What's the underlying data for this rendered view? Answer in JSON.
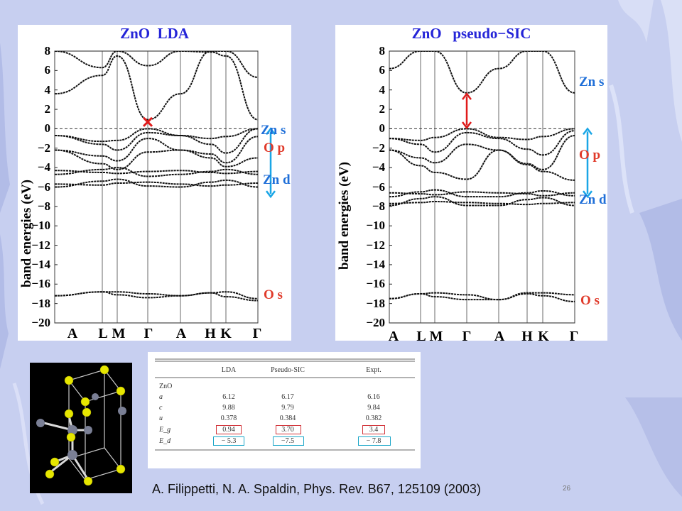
{
  "slide": {
    "reference": "A. Filippetti, N. A. Spaldin, Phys. Rev. B67, 125109 (2003)",
    "page_number": "26"
  },
  "colors": {
    "title": "#2525d8",
    "orbital_label": "#e03a2a",
    "zn_label": "#1f6fd8",
    "arrow_blue": "#1aa6e6",
    "arrow_red": "#e01b1b",
    "band_line": "#111111",
    "background": "#c7cff0"
  },
  "panels": [
    {
      "title": "ZnO  LDA",
      "ylabel": "band energies (eV)",
      "kpoints": [
        "A",
        "L",
        "M",
        "Γ",
        "A",
        "H",
        "K",
        "Γ"
      ],
      "annotations": {
        "zn_s": "Zn s",
        "o_p": "O p",
        "zn_d": "Zn d",
        "o_s": "O s"
      },
      "gap_marker": "cross-icon"
    },
    {
      "title": "ZnO   pseudo−SIC",
      "ylabel": "band energies (eV)",
      "kpoints": [
        "A",
        "L",
        "M",
        "Γ",
        "A",
        "H",
        "K",
        "Γ"
      ],
      "annotations": {
        "zn_s": "Zn s",
        "o_p": "O p",
        "zn_d": "Zn d",
        "o_s": "O s"
      },
      "gap_marker": "double-arrow-icon"
    }
  ],
  "table": {
    "columns": [
      "",
      "LDA",
      "Pseudo-SIC",
      "Expt."
    ],
    "section": "ZnO",
    "rows": [
      {
        "label": "a",
        "lda": "6.12",
        "sic": "6.17",
        "expt": "6.16"
      },
      {
        "label": "c",
        "lda": "9.88",
        "sic": "9.79",
        "expt": "9.84"
      },
      {
        "label": "u",
        "lda": "0.378",
        "sic": "0.384",
        "expt": "0.382"
      },
      {
        "label": "E_g",
        "lda": "0.94",
        "sic": "3.70",
        "expt": "3.4"
      },
      {
        "label": "E_d",
        "lda": "− 5.3",
        "sic": "−7.5",
        "expt": "− 7.8"
      }
    ]
  },
  "chart_data": [
    {
      "type": "line",
      "title": "ZnO  LDA",
      "xlabel": "",
      "ylabel": "band energies (eV)",
      "ylim": [
        -20,
        8
      ],
      "yticks": [
        8,
        6,
        4,
        2,
        0,
        -2,
        -4,
        -6,
        -8,
        -10,
        -12,
        -14,
        -16,
        -18,
        -20
      ],
      "x": [
        "A",
        "L",
        "M",
        "Γ",
        "A",
        "H",
        "K",
        "Γ"
      ],
      "fermi_level": 0,
      "series": [
        {
          "values": [
            3.6,
            5.5,
            7.5,
            0.94,
            3.6,
            8.0,
            8.0,
            5.3
          ]
        },
        {
          "values": [
            8.0,
            6.3,
            8.0,
            6.5,
            8.0,
            7.9,
            7.5,
            0.94
          ]
        },
        {
          "values": [
            -0.7,
            -1.3,
            -1.2,
            0.0,
            -0.7,
            -1.0,
            -0.8,
            0.0
          ]
        },
        {
          "values": [
            -0.7,
            -1.6,
            -2.2,
            -0.4,
            -0.7,
            -1.6,
            -2.5,
            0.0
          ]
        },
        {
          "values": [
            -2.2,
            -2.8,
            -3.3,
            -1.0,
            -2.2,
            -2.6,
            -3.5,
            -0.8
          ]
        },
        {
          "values": [
            -2.2,
            -3.6,
            -4.2,
            -2.4,
            -2.2,
            -3.0,
            -3.9,
            -3.0
          ]
        },
        {
          "values": [
            -4.3,
            -4.5,
            -4.6,
            -4.4,
            -4.3,
            -4.5,
            -4.6,
            -4.4
          ]
        },
        {
          "values": [
            -4.7,
            -4.2,
            -4.0,
            -4.9,
            -4.7,
            -4.4,
            -4.2,
            -4.7
          ]
        },
        {
          "values": [
            -5.7,
            -5.8,
            -5.6,
            -5.5,
            -5.7,
            -5.9,
            -5.8,
            -5.6
          ]
        },
        {
          "values": [
            -6.0,
            -5.4,
            -5.2,
            -5.9,
            -6.0,
            -5.5,
            -5.3,
            -6.0
          ]
        },
        {
          "values": [
            -17.2,
            -16.8,
            -16.8,
            -17.0,
            -17.2,
            -16.9,
            -16.8,
            -17.5
          ]
        },
        {
          "values": [
            -17.2,
            -16.8,
            -17.1,
            -17.4,
            -17.2,
            -16.9,
            -17.3,
            -17.7
          ]
        }
      ]
    },
    {
      "type": "line",
      "title": "ZnO   pseudo−SIC",
      "xlabel": "",
      "ylabel": "band energies (eV)",
      "ylim": [
        -20,
        8
      ],
      "yticks": [
        8,
        6,
        4,
        2,
        0,
        -2,
        -4,
        -6,
        -8,
        -10,
        -12,
        -14,
        -16,
        -18,
        -20
      ],
      "x": [
        "A",
        "L",
        "M",
        "Γ",
        "A",
        "H",
        "K",
        "Γ"
      ],
      "fermi_level": 0,
      "series": [
        {
          "values": [
            6.2,
            8.0,
            8.0,
            3.7,
            6.2,
            8.0,
            8.0,
            3.7
          ]
        },
        {
          "values": [
            -1.0,
            -1.2,
            -0.9,
            0.0,
            -0.9,
            -1.1,
            -0.8,
            0.0
          ]
        },
        {
          "values": [
            -1.0,
            -1.6,
            -2.4,
            -0.4,
            -1.0,
            -2.1,
            -2.7,
            -0.2
          ]
        },
        {
          "values": [
            -2.2,
            -3.0,
            -3.5,
            -1.6,
            -2.2,
            -3.6,
            -4.2,
            -0.7
          ]
        },
        {
          "values": [
            -2.2,
            -3.8,
            -4.5,
            -5.2,
            -2.2,
            -3.7,
            -4.4,
            -5.3
          ]
        },
        {
          "values": [
            -6.6,
            -6.7,
            -6.8,
            -6.5,
            -6.6,
            -6.7,
            -6.9,
            -6.6
          ]
        },
        {
          "values": [
            -7.0,
            -6.5,
            -6.3,
            -7.0,
            -7.0,
            -6.6,
            -6.4,
            -6.9
          ]
        },
        {
          "values": [
            -7.7,
            -7.6,
            -7.5,
            -7.6,
            -7.7,
            -7.8,
            -7.7,
            -7.6
          ]
        },
        {
          "values": [
            -7.9,
            -7.2,
            -7.0,
            -7.9,
            -7.9,
            -7.3,
            -7.1,
            -7.9
          ]
        },
        {
          "values": [
            -17.5,
            -17.0,
            -16.9,
            -17.1,
            -17.6,
            -16.9,
            -16.9,
            -17.1
          ]
        },
        {
          "values": [
            -17.5,
            -17.0,
            -17.3,
            -17.6,
            -17.6,
            -17.0,
            -17.2,
            -17.8
          ]
        }
      ]
    }
  ]
}
